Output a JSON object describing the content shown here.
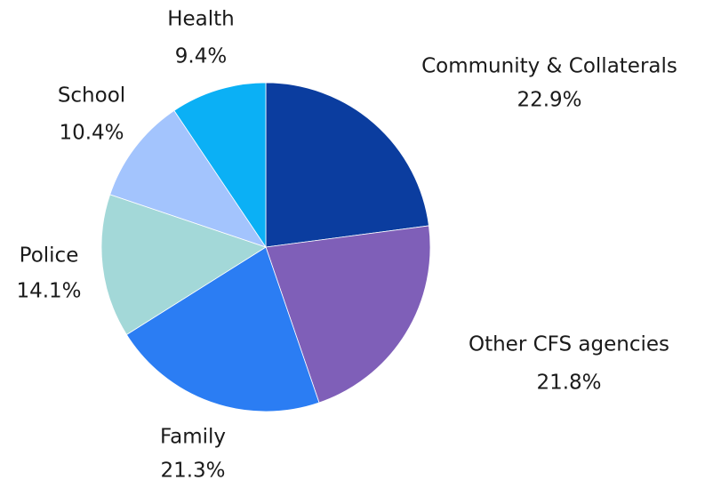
{
  "chart_data": {
    "type": "pie",
    "categories": [
      "Community & Collaterals",
      "Other CFS agencies",
      "Family",
      "Police",
      "School",
      "Health"
    ],
    "values": [
      22.9,
      21.8,
      21.3,
      14.1,
      10.4,
      9.4
    ],
    "value_labels": [
      "22.9%",
      "21.8%",
      "21.3%",
      "14.1%",
      "10.4%",
      "9.4%"
    ],
    "colors": [
      "#0b3d9f",
      "#7f5fb8",
      "#2b7df3",
      "#a3d8d8",
      "#a3c4fd",
      "#0bb0f5"
    ]
  }
}
